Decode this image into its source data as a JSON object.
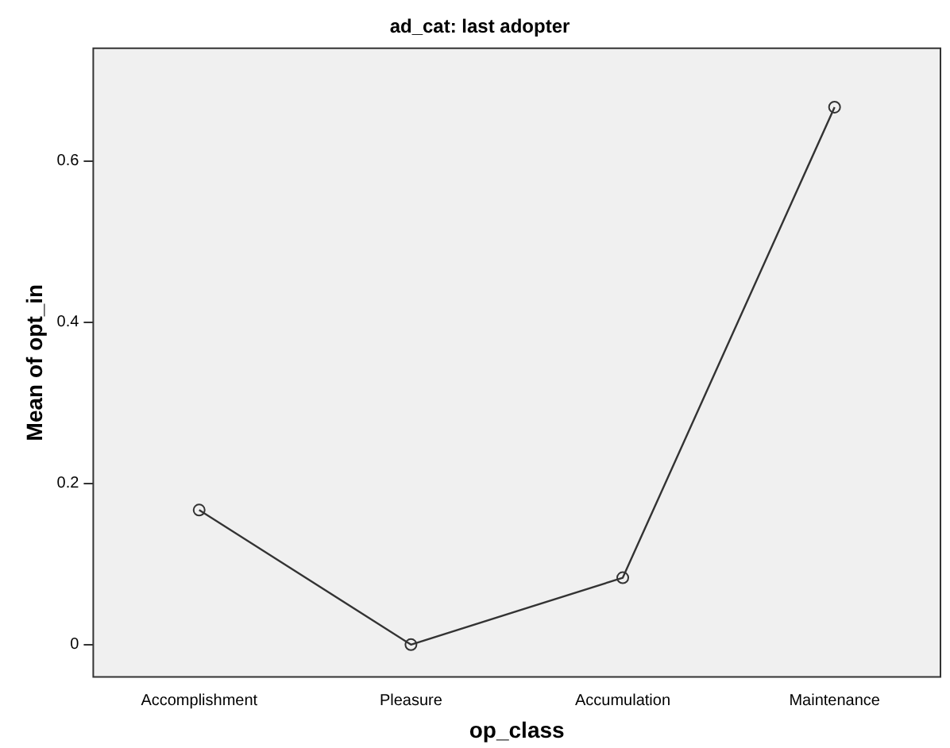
{
  "chart_data": {
    "type": "line",
    "title": "ad_cat: last adopter",
    "xlabel": "op_class",
    "ylabel": "Mean of opt_in",
    "categories": [
      "Accomplishment",
      "Pleasure",
      "Accumulation",
      "Maintenance"
    ],
    "series": [
      {
        "color": "#333333",
        "values": [
          0.167,
          0,
          0.083,
          0.667
        ]
      }
    ],
    "ylim": [
      -0.04,
      0.74
    ],
    "yticks": [
      0,
      0.2,
      0.4,
      0.6
    ],
    "grid": false,
    "legend": false,
    "marker": "circle",
    "line_style": "solid"
  }
}
